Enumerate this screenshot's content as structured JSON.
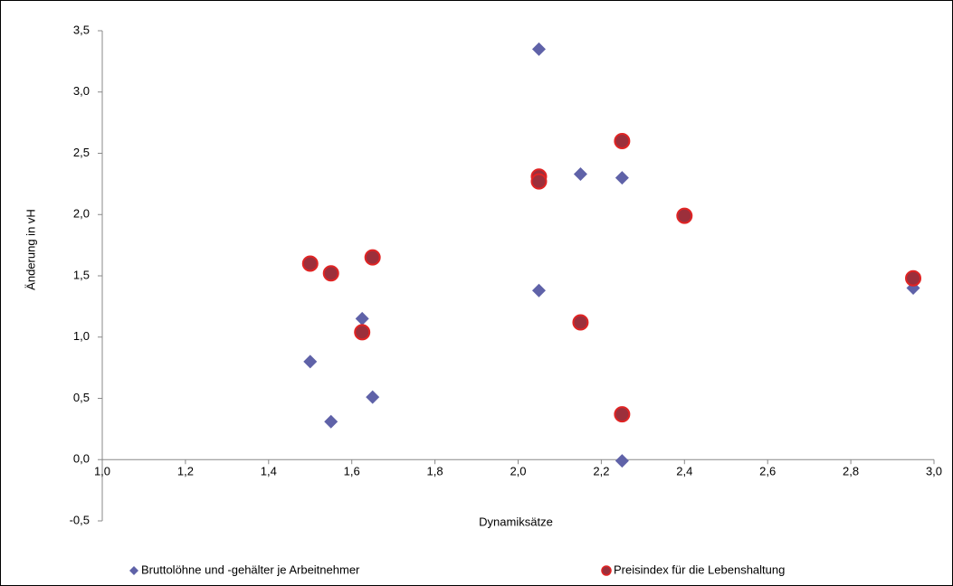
{
  "chart_data": {
    "type": "scatter",
    "x_label": "Dynamiksätze",
    "y_label": "Änderung in vH",
    "xlim": [
      1.0,
      3.0
    ],
    "ylim": [
      -0.5,
      3.5
    ],
    "xticks": [
      {
        "value": 1.0,
        "label": "1,0"
      },
      {
        "value": 1.2,
        "label": "1,2"
      },
      {
        "value": 1.4,
        "label": "1,4"
      },
      {
        "value": 1.6,
        "label": "1,6"
      },
      {
        "value": 1.8,
        "label": "1,8"
      },
      {
        "value": 2.0,
        "label": "2,0"
      },
      {
        "value": 2.2,
        "label": "2,2"
      },
      {
        "value": 2.4,
        "label": "2,4"
      },
      {
        "value": 2.6,
        "label": "2,6"
      },
      {
        "value": 2.8,
        "label": "2,8"
      },
      {
        "value": 3.0,
        "label": "3,0"
      }
    ],
    "yticks": [
      {
        "value": -0.5,
        "label": "-0,5"
      },
      {
        "value": 0.0,
        "label": "0,0"
      },
      {
        "value": 0.5,
        "label": "0,5"
      },
      {
        "value": 1.0,
        "label": "1,0"
      },
      {
        "value": 1.5,
        "label": "1,5"
      },
      {
        "value": 2.0,
        "label": "2,0"
      },
      {
        "value": 2.5,
        "label": "2,5"
      },
      {
        "value": 3.0,
        "label": "3,0"
      },
      {
        "value": 3.5,
        "label": "3,5"
      }
    ],
    "grid": false,
    "legend": "bottom",
    "series": [
      {
        "name": "Bruttolöhne und -gehälter je Arbeitnehmer",
        "color": "#5f62a8",
        "marker": "diamond",
        "x": [
          1.5,
          1.55,
          1.625,
          1.65,
          2.05,
          2.05,
          2.15,
          2.25,
          2.25,
          2.95
        ],
        "values": [
          0.8,
          0.31,
          1.15,
          0.51,
          3.35,
          1.38,
          2.33,
          2.3,
          -0.01,
          1.4
        ]
      },
      {
        "name": "Preisindex für die Lebenshaltung",
        "color": "#9c2f3b",
        "edge_color": "#e02424",
        "marker": "circle",
        "x": [
          1.5,
          1.55,
          1.625,
          1.65,
          2.05,
          2.05,
          2.15,
          2.25,
          2.25,
          2.4,
          2.95
        ],
        "values": [
          1.6,
          1.52,
          1.04,
          1.65,
          2.31,
          2.27,
          1.12,
          2.6,
          0.37,
          1.99,
          1.48
        ]
      }
    ]
  }
}
